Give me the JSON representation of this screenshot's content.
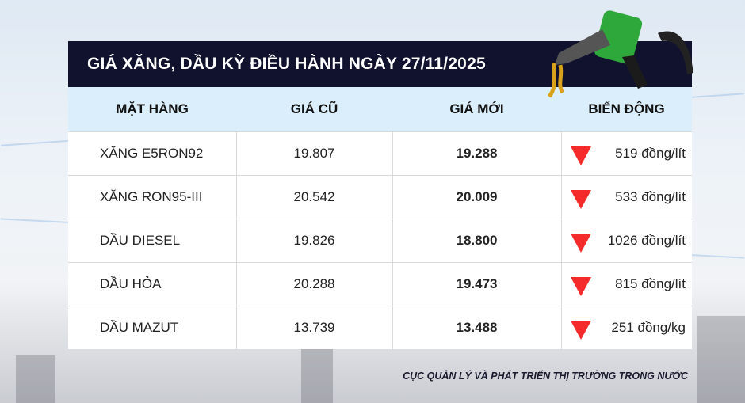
{
  "title": "GIÁ XĂNG, DẦU KỲ ĐIỀU HÀNH NGÀY 27/11/2025",
  "columns": [
    "MẶT HÀNG",
    "GIÁ CŨ",
    "GIÁ MỚI",
    "BIẾN ĐỘNG"
  ],
  "rows": [
    {
      "item": "XĂNG E5RON92",
      "old": "19.807",
      "new": "19.288",
      "change": "519 đồng/lít",
      "direction": "down"
    },
    {
      "item": "XĂNG RON95-III",
      "old": "20.542",
      "new": "20.009",
      "change": "533 đồng/lít",
      "direction": "down"
    },
    {
      "item": "DẦU DIESEL",
      "old": "19.826",
      "new": "18.800",
      "change": "1026 đồng/lít",
      "direction": "down"
    },
    {
      "item": "DẦU HỎA",
      "old": "20.288",
      "new": "19.473",
      "change": "815 đồng/lít",
      "direction": "down"
    },
    {
      "item": "DẦU MAZUT",
      "old": "13.739",
      "new": "13.488",
      "change": "251 đồng/kg",
      "direction": "down"
    }
  ],
  "footer": "CỤC QUẢN LÝ VÀ PHÁT TRIỂN THỊ TRƯỜNG TRONG NƯỚC",
  "colors": {
    "header_bg": "#10122e",
    "column_header_bg": "#dbeefb",
    "down_arrow": "#f52a2a"
  },
  "icons": {
    "decoration": "fuel-nozzle-icon",
    "change": "triangle-down-icon"
  }
}
